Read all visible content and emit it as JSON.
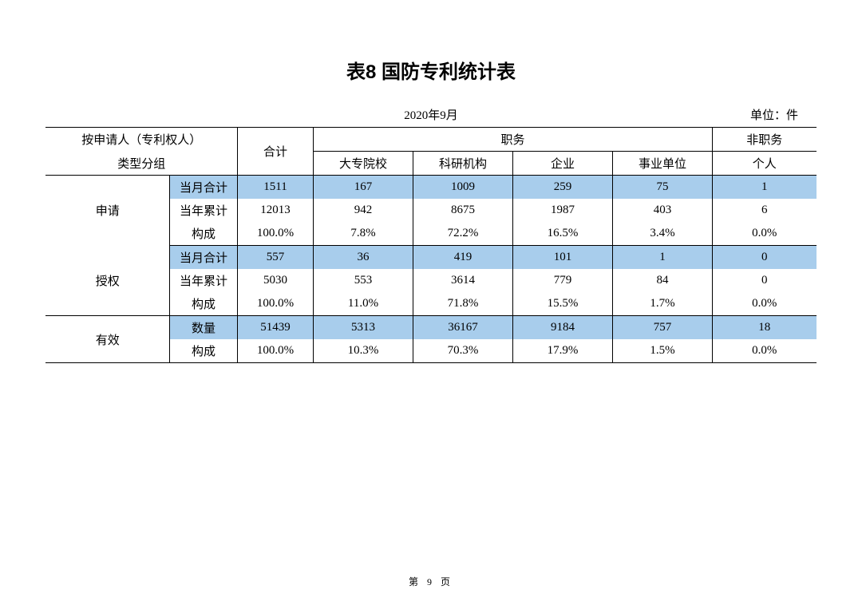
{
  "title": "表8 国防专利统计表",
  "date": "2020年9月",
  "unit": "单位：件",
  "header": {
    "group": "按申请人（专利权人）\n类型分组",
    "total": "合计",
    "job_group": "职务",
    "nonjob_group": "非职务",
    "cols": [
      "大专院校",
      "科研机构",
      "企业",
      "事业单位",
      "个人"
    ]
  },
  "sections": [
    {
      "name": "申请",
      "rows": [
        {
          "label": "当月合计",
          "hl": true,
          "vals": [
            "1511",
            "167",
            "1009",
            "259",
            "75",
            "1"
          ]
        },
        {
          "label": "当年累计",
          "hl": false,
          "vals": [
            "12013",
            "942",
            "8675",
            "1987",
            "403",
            "6"
          ]
        },
        {
          "label": "构成",
          "hl": false,
          "vals": [
            "100.0%",
            "7.8%",
            "72.2%",
            "16.5%",
            "3.4%",
            "0.0%"
          ]
        }
      ]
    },
    {
      "name": "授权",
      "rows": [
        {
          "label": "当月合计",
          "hl": true,
          "vals": [
            "557",
            "36",
            "419",
            "101",
            "1",
            "0"
          ]
        },
        {
          "label": "当年累计",
          "hl": false,
          "vals": [
            "5030",
            "553",
            "3614",
            "779",
            "84",
            "0"
          ]
        },
        {
          "label": "构成",
          "hl": false,
          "vals": [
            "100.0%",
            "11.0%",
            "71.8%",
            "15.5%",
            "1.7%",
            "0.0%"
          ]
        }
      ]
    },
    {
      "name": "有效",
      "rows": [
        {
          "label": "数量",
          "hl": true,
          "vals": [
            "51439",
            "5313",
            "36167",
            "9184",
            "757",
            "18"
          ]
        },
        {
          "label": "构成",
          "hl": false,
          "vals": [
            "100.0%",
            "10.3%",
            "70.3%",
            "17.9%",
            "1.5%",
            "0.0%"
          ]
        }
      ]
    }
  ],
  "footer": "第 9 页",
  "colors": {
    "highlight": "#a8cdec",
    "border": "#000000",
    "background": "#ffffff"
  }
}
